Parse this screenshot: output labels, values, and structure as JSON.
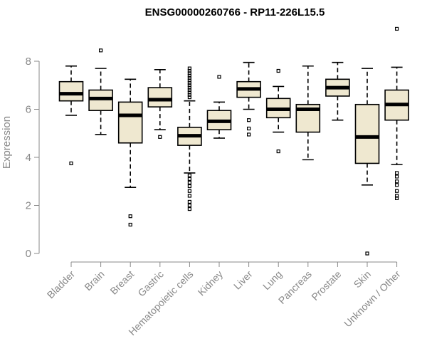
{
  "chart_data": {
    "type": "boxplot",
    "title": "ENSG00000260766 - RP11-226L15.5",
    "xlabel": "",
    "ylabel": "Expression",
    "ylim": [
      0,
      9.4
    ],
    "yticks": [
      0,
      2,
      4,
      6,
      8
    ],
    "grid": false,
    "box_fill": "#efe8d0",
    "box_stroke": "#000000",
    "median_color": "#000000",
    "axis_color": "#888888",
    "categories": [
      "Bladder",
      "Brain",
      "Breast",
      "Gastric",
      "Hematopoietic cells",
      "Kidney",
      "Liver",
      "Lung",
      "Pancreas",
      "Prostate",
      "Skin",
      "Unknown / Other"
    ],
    "boxes": [
      {
        "min": 5.75,
        "q1": 6.35,
        "median": 6.65,
        "q3": 7.15,
        "max": 7.8,
        "outliers": [
          3.75
        ]
      },
      {
        "min": 4.95,
        "q1": 5.95,
        "median": 6.45,
        "q3": 6.8,
        "max": 7.7,
        "outliers": [
          8.45
        ]
      },
      {
        "min": 2.75,
        "q1": 4.6,
        "median": 5.75,
        "q3": 6.3,
        "max": 7.25,
        "outliers": [
          1.55,
          1.2
        ]
      },
      {
        "min": 5.15,
        "q1": 6.1,
        "median": 6.4,
        "q3": 6.9,
        "max": 7.65,
        "outliers": [
          4.85
        ]
      },
      {
        "min": 3.35,
        "q1": 4.5,
        "median": 4.9,
        "q3": 5.25,
        "max": 6.35,
        "outliers": [
          7.7,
          7.6,
          7.5,
          7.4,
          7.3,
          7.2,
          7.1,
          7.0,
          6.9,
          6.8,
          6.7,
          6.6,
          6.5,
          3.25,
          3.1,
          2.95,
          2.8,
          2.6,
          2.4,
          2.15,
          2.0,
          1.85
        ]
      },
      {
        "min": 4.8,
        "q1": 5.15,
        "median": 5.5,
        "q3": 5.95,
        "max": 6.3,
        "outliers": [
          7.35
        ]
      },
      {
        "min": 6.0,
        "q1": 6.5,
        "median": 6.85,
        "q3": 7.15,
        "max": 7.95,
        "outliers": [
          5.55,
          5.2,
          4.95
        ]
      },
      {
        "min": 5.05,
        "q1": 5.65,
        "median": 6.0,
        "q3": 6.45,
        "max": 6.95,
        "outliers": [
          7.6,
          4.25
        ]
      },
      {
        "min": 3.9,
        "q1": 5.05,
        "median": 6.0,
        "q3": 6.2,
        "max": 7.8,
        "outliers": []
      },
      {
        "min": 5.55,
        "q1": 6.55,
        "median": 6.9,
        "q3": 7.25,
        "max": 7.95,
        "outliers": []
      },
      {
        "min": 2.85,
        "q1": 3.75,
        "median": 4.85,
        "q3": 6.2,
        "max": 7.7,
        "outliers": [
          0.0
        ]
      },
      {
        "min": 3.7,
        "q1": 5.55,
        "median": 6.2,
        "q3": 6.8,
        "max": 7.75,
        "outliers": [
          9.35,
          3.35,
          3.2,
          3.0,
          2.85,
          2.6,
          2.4,
          2.3
        ]
      }
    ]
  }
}
